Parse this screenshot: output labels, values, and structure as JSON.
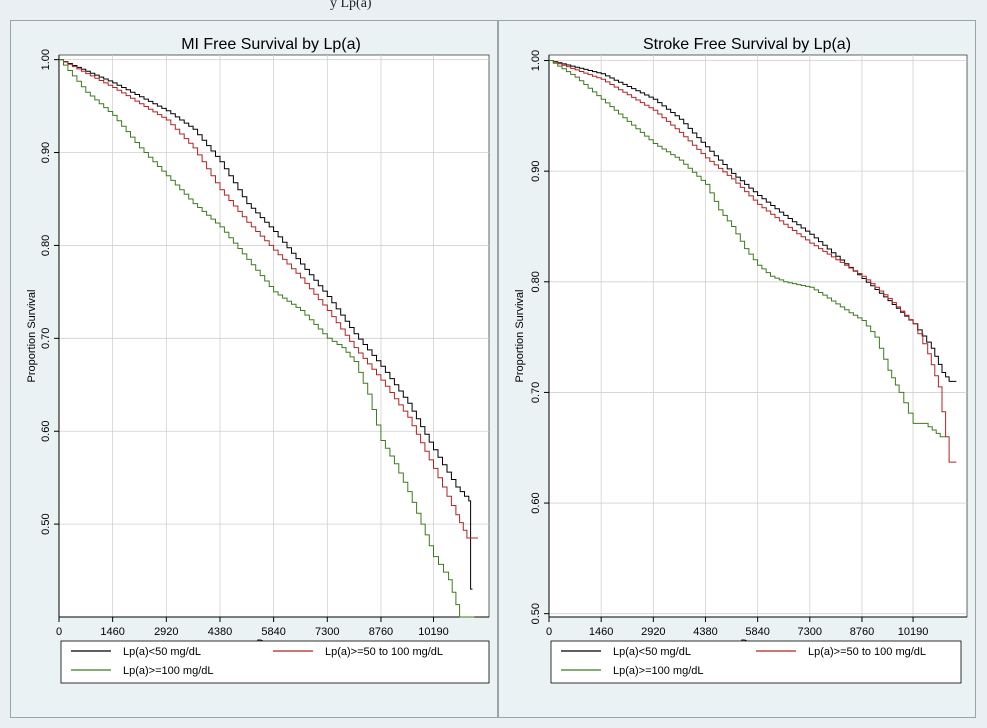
{
  "top_strip": {
    "text": "y Lp(a)"
  },
  "chart_data": [
    {
      "type": "line",
      "title": "MI Free Survival by Lp(a)",
      "xlabel": "Days",
      "ylabel": "Proportion Survival",
      "xlim": [
        0,
        11700
      ],
      "ylim": [
        0.4,
        1.005
      ],
      "x_ticks": [
        0,
        1460,
        2920,
        4380,
        5840,
        7300,
        8760,
        10190
      ],
      "y_ticks": [
        1.0,
        0.9,
        0.8,
        0.7,
        0.6,
        0.5
      ],
      "y_tick_labels": [
        "1.00",
        "0.90",
        "0.80",
        "0.70",
        "0.60",
        "0.50"
      ],
      "grid": true,
      "legend_position": "bottom",
      "series": [
        {
          "name": "Lp(a)<50 mg/dL",
          "color": "#000000",
          "x": [
            0,
            1460,
            2920,
            3650,
            4380,
            5110,
            5840,
            6570,
            7300,
            8030,
            8760,
            9490,
            10190,
            10800,
            11150,
            11200,
            11250
          ],
          "y": [
            1.0,
            0.975,
            0.945,
            0.925,
            0.89,
            0.845,
            0.815,
            0.78,
            0.745,
            0.705,
            0.67,
            0.63,
            0.58,
            0.54,
            0.525,
            0.43,
            0.43
          ]
        },
        {
          "name": "Lp(a)>=50 to 100 mg/dL",
          "color": "#b02424",
          "x": [
            0,
            1460,
            2920,
            3650,
            4380,
            5110,
            5840,
            6570,
            7300,
            8030,
            8760,
            9490,
            10190,
            10800,
            11100,
            11400
          ],
          "y": [
            1.0,
            0.97,
            0.935,
            0.905,
            0.86,
            0.825,
            0.795,
            0.765,
            0.73,
            0.69,
            0.655,
            0.615,
            0.56,
            0.51,
            0.485,
            0.485
          ]
        },
        {
          "name": "Lp(a)>=100 mg/dL",
          "color": "#3f7a1f",
          "x": [
            0,
            730,
            1460,
            2190,
            2920,
            3650,
            4380,
            5110,
            5840,
            6570,
            7300,
            7700,
            8030,
            8400,
            8760,
            9125,
            9490,
            9850,
            10190,
            10600,
            10900,
            11300
          ],
          "y": [
            1.0,
            0.965,
            0.94,
            0.905,
            0.875,
            0.845,
            0.82,
            0.785,
            0.75,
            0.73,
            0.7,
            0.69,
            0.675,
            0.64,
            0.59,
            0.565,
            0.535,
            0.5,
            0.465,
            0.44,
            0.4,
            0.4
          ]
        }
      ]
    },
    {
      "type": "line",
      "title": "Stroke Free Survival by Lp(a)",
      "xlabel": "Days",
      "ylabel": "Proportion Survival",
      "xlim": [
        0,
        11700
      ],
      "ylim": [
        0.497,
        1.005
      ],
      "x_ticks": [
        0,
        1460,
        2920,
        4380,
        5840,
        7300,
        8760,
        10190
      ],
      "y_ticks": [
        1.0,
        0.9,
        0.8,
        0.7,
        0.6,
        0.5
      ],
      "y_tick_labels": [
        "1.00",
        "0.90",
        "0.80",
        "0.70",
        "0.60",
        "0.50"
      ],
      "grid": true,
      "legend_position": "bottom",
      "series": [
        {
          "name": "Lp(a)<50 mg/dL",
          "color": "#000000",
          "x": [
            0,
            1460,
            2920,
            3650,
            4380,
            5110,
            5840,
            6570,
            7300,
            8030,
            8760,
            9490,
            10190,
            10700,
            11000,
            11200,
            11400
          ],
          "y": [
            1.0,
            0.988,
            0.965,
            0.947,
            0.922,
            0.898,
            0.878,
            0.86,
            0.843,
            0.823,
            0.803,
            0.783,
            0.762,
            0.74,
            0.718,
            0.71,
            0.71
          ]
        },
        {
          "name": "Lp(a)>=50 to 100 mg/dL",
          "color": "#b02424",
          "x": [
            0,
            1460,
            2920,
            3650,
            4380,
            5110,
            5840,
            6570,
            7300,
            8030,
            8760,
            9490,
            10190,
            10600,
            10900,
            11100,
            11200,
            11400
          ],
          "y": [
            1.0,
            0.983,
            0.955,
            0.935,
            0.912,
            0.893,
            0.87,
            0.852,
            0.835,
            0.82,
            0.805,
            0.785,
            0.762,
            0.735,
            0.705,
            0.66,
            0.637,
            0.637
          ]
        },
        {
          "name": "Lp(a)>=100 mg/dL",
          "color": "#3f7a1f",
          "x": [
            0,
            730,
            1460,
            2190,
            2920,
            3650,
            4380,
            4750,
            5110,
            5475,
            5840,
            6200,
            6570,
            7300,
            7665,
            8030,
            8400,
            8760,
            9125,
            9490,
            9800,
            10190,
            10500,
            10950,
            11100
          ],
          "y": [
            1.0,
            0.985,
            0.965,
            0.945,
            0.925,
            0.91,
            0.888,
            0.865,
            0.85,
            0.83,
            0.815,
            0.805,
            0.8,
            0.795,
            0.788,
            0.78,
            0.772,
            0.765,
            0.75,
            0.72,
            0.7,
            0.672,
            0.672,
            0.66,
            0.66
          ]
        }
      ]
    }
  ]
}
